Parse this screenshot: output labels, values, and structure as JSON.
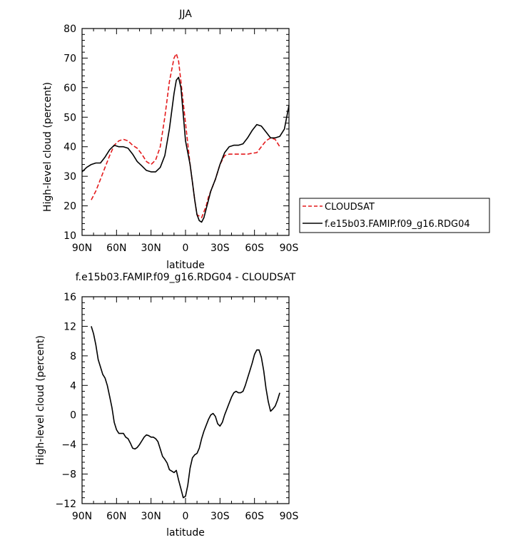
{
  "chart_data": [
    {
      "type": "line",
      "title": "JJA",
      "xlabel": "latitude",
      "ylabel": "High-level cloud (percent)",
      "xlim": [
        90,
        -90
      ],
      "ylim": [
        10,
        80
      ],
      "x_ticks": [
        90,
        60,
        30,
        0,
        -30,
        -60,
        -90
      ],
      "x_tick_labels": [
        "90N",
        "60N",
        "30N",
        "0",
        "30S",
        "60S",
        "90S"
      ],
      "y_ticks": [
        10,
        20,
        30,
        40,
        50,
        60,
        70,
        80
      ],
      "y_tick_labels": [
        "10",
        "20",
        "30",
        "40",
        "50",
        "60",
        "70",
        "80"
      ],
      "grid": false,
      "legend_position": "right, outside plot",
      "series": [
        {
          "name": "CLOUDSAT",
          "color": "#e41a1c",
          "dash": "dashed",
          "x": [
            82,
            78,
            74,
            70,
            66,
            62,
            58,
            54,
            50,
            46,
            42,
            38,
            34,
            30,
            26,
            22,
            18,
            14,
            10,
            8,
            6,
            4,
            2,
            0,
            -2,
            -4,
            -6,
            -8,
            -10,
            -14,
            -18,
            -20,
            -22,
            -26,
            -30,
            -34,
            -38,
            -42,
            -46,
            -50,
            -54,
            -58,
            -62,
            -66,
            -70,
            -74,
            -78,
            -82
          ],
          "y": [
            22,
            25,
            29,
            33,
            37,
            40.5,
            42,
            42.5,
            42,
            40.5,
            39.5,
            37.5,
            35,
            34,
            35.5,
            40,
            50,
            62,
            70,
            71.5,
            69,
            62,
            55,
            48,
            41,
            34,
            28,
            22,
            17,
            16,
            20,
            23,
            25,
            29,
            34,
            37,
            37.5,
            37.5,
            37.5,
            37.5,
            37.5,
            37.8,
            38,
            40,
            42,
            43,
            42.5,
            40
          ]
        },
        {
          "name": "f.e15b03.FAMIP.f09_g16.RDG04",
          "color": "#000000",
          "dash": "solid",
          "x": [
            90,
            86,
            82,
            78,
            74,
            70,
            66,
            62,
            58,
            54,
            50,
            46,
            42,
            38,
            34,
            30,
            26,
            22,
            18,
            14,
            10,
            8,
            6,
            4,
            2,
            0,
            -2,
            -4,
            -6,
            -8,
            -10,
            -12,
            -14,
            -16,
            -18,
            -20,
            -22,
            -26,
            -30,
            -34,
            -38,
            -42,
            -46,
            -50,
            -54,
            -58,
            -62,
            -66,
            -70,
            -74,
            -78,
            -82,
            -86,
            -90
          ],
          "y": [
            31.5,
            33,
            34,
            34.5,
            34.5,
            36.5,
            39,
            40.5,
            40,
            40,
            39.5,
            37.5,
            35,
            33.5,
            32,
            31.5,
            31.5,
            33,
            37,
            46,
            58,
            62.5,
            63.5,
            60,
            51,
            42,
            38,
            34,
            28,
            22,
            17,
            15,
            14.5,
            16,
            19,
            22,
            25,
            29,
            34,
            38,
            40,
            40.5,
            40.5,
            41,
            43,
            45.5,
            47.5,
            47,
            45,
            43,
            43,
            43.5,
            46,
            54
          ]
        }
      ]
    },
    {
      "type": "line",
      "title": "f.e15b03.FAMIP.f09_g16.RDG04 - CLOUDSAT",
      "xlabel": "latitude",
      "ylabel": "High-level cloud (percent)",
      "xlim": [
        90,
        -90
      ],
      "ylim": [
        -12,
        16
      ],
      "x_ticks": [
        90,
        60,
        30,
        0,
        -30,
        -60,
        -90
      ],
      "x_tick_labels": [
        "90N",
        "60N",
        "30N",
        "0",
        "30S",
        "60S",
        "90S"
      ],
      "y_ticks": [
        -12,
        -8,
        -4,
        0,
        4,
        8,
        12,
        16
      ],
      "y_tick_labels": [
        "−12",
        "−8",
        "−4",
        "0",
        "4",
        "8",
        "12",
        "16"
      ],
      "grid": false,
      "series": [
        {
          "color": "#000000",
          "dash": "solid",
          "x": [
            82,
            80,
            78,
            76,
            74,
            72,
            70,
            68,
            66,
            64,
            62,
            60,
            58,
            56,
            54,
            52,
            50,
            48,
            46,
            44,
            42,
            40,
            38,
            36,
            34,
            32,
            30,
            28,
            26,
            24,
            22,
            20,
            18,
            16,
            14,
            12,
            10,
            8,
            6,
            4,
            2,
            0,
            -2,
            -4,
            -6,
            -8,
            -10,
            -12,
            -14,
            -16,
            -18,
            -20,
            -22,
            -24,
            -26,
            -28,
            -30,
            -32,
            -34,
            -36,
            -38,
            -40,
            -42,
            -44,
            -46,
            -48,
            -50,
            -52,
            -54,
            -56,
            -58,
            -60,
            -62,
            -64,
            -66,
            -68,
            -70,
            -72,
            -74,
            -76,
            -78,
            -80,
            -82
          ],
          "y": [
            12,
            11,
            9.5,
            7.5,
            6.5,
            5.5,
            5,
            4,
            2.5,
            1,
            -1,
            -2,
            -2.5,
            -2.5,
            -2.5,
            -3,
            -3.2,
            -3.8,
            -4.5,
            -4.6,
            -4.4,
            -4,
            -3.5,
            -3,
            -2.7,
            -2.8,
            -3,
            -3,
            -3.2,
            -3.6,
            -4.6,
            -5.6,
            -6,
            -6.5,
            -7.4,
            -7.6,
            -7.8,
            -7.5,
            -8.8,
            -10,
            -11.2,
            -11,
            -9.5,
            -7.2,
            -5.8,
            -5.4,
            -5.2,
            -4.5,
            -3.2,
            -2.2,
            -1.4,
            -0.6,
            0,
            0.2,
            -0.2,
            -1.2,
            -1.5,
            -1,
            0,
            0.8,
            1.6,
            2.4,
            3,
            3.2,
            3,
            3,
            3.2,
            4,
            5,
            6,
            7,
            8.2,
            8.8,
            8.8,
            7.8,
            6,
            3.6,
            1.8,
            0.5,
            0.8,
            1.2,
            2,
            3
          ]
        }
      ]
    }
  ]
}
